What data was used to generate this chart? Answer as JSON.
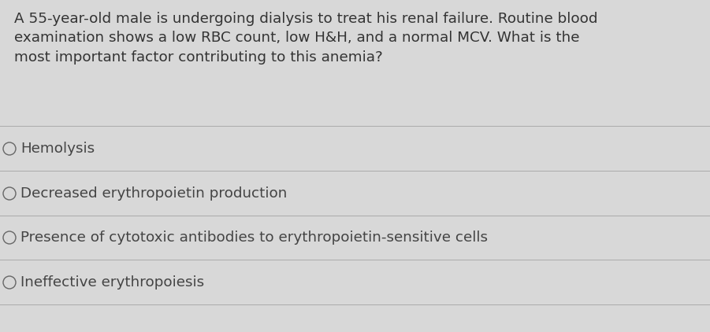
{
  "background_color": "#d8d8d8",
  "question_text": "A 55-year-old male is undergoing dialysis to treat his renal failure. Routine blood\nexamination shows a low RBC count, low H&H, and a normal MCV. What is the\nmost important factor contributing to this anemia?",
  "options": [
    "Hemolysis",
    "Decreased erythropoietin production",
    "Presence of cytotoxic antibodies to erythropoietin-sensitive cells",
    "Ineffective erythropoiesis"
  ],
  "question_font_size": 13.2,
  "option_font_size": 13.2,
  "question_color": "#333333",
  "option_color": "#444444",
  "divider_color": "#aaaaaa",
  "circle_edge_color": "#666666",
  "figsize": [
    9.01,
    4.22
  ],
  "dpi": 100
}
